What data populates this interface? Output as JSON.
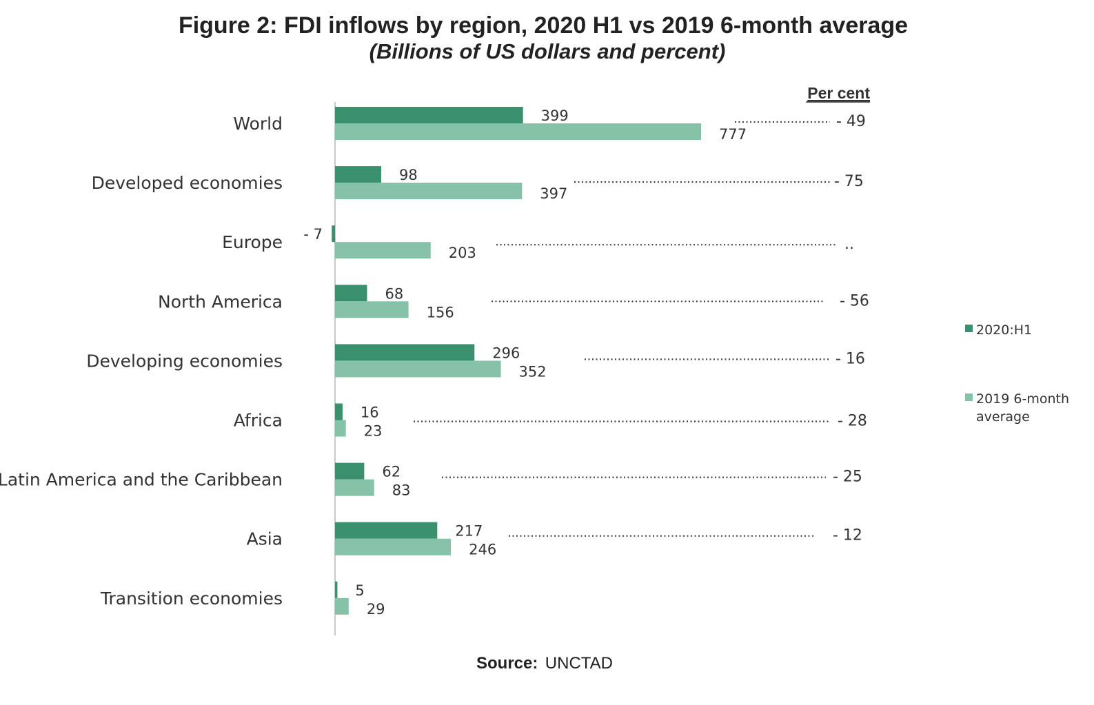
{
  "chart_data": {
    "type": "bar",
    "orientation": "horizontal",
    "title": "Figure 2: FDI inflows by region, 2020 H1 vs 2019 6-month average",
    "subtitle": "(Billions of US dollars and percent)",
    "categories": [
      "World",
      "Developed economies",
      "Europe",
      "North America",
      "Developing economies",
      "Africa",
      "Latin America and the Caribbean",
      "Asia",
      "Transition economies"
    ],
    "series": [
      {
        "name": "2020:H1",
        "color": "#3a8f6c",
        "values": [
          399,
          98,
          -7,
          68,
          296,
          16,
          62,
          217,
          5
        ],
        "labels": [
          "399",
          "98",
          "- 7",
          "68",
          "296",
          "16",
          "62",
          "217",
          "5"
        ]
      },
      {
        "name": "2019 6-month average",
        "color": "#86c2a8",
        "values": [
          777,
          397,
          203,
          156,
          352,
          23,
          83,
          246,
          29
        ],
        "labels": [
          "777",
          "397",
          "203",
          "156",
          "352",
          "23",
          "83",
          "246",
          "29"
        ]
      }
    ],
    "percent_header": "Per cent",
    "percent_change": [
      "- 49",
      "- 75",
      "..",
      "- 56",
      "- 16",
      "- 28",
      "- 25",
      "- 12",
      ""
    ],
    "xlim": [
      -10,
      800
    ],
    "grid": false,
    "legend_position": "right"
  },
  "source": {
    "label": "Source:",
    "value": "UNCTAD"
  }
}
